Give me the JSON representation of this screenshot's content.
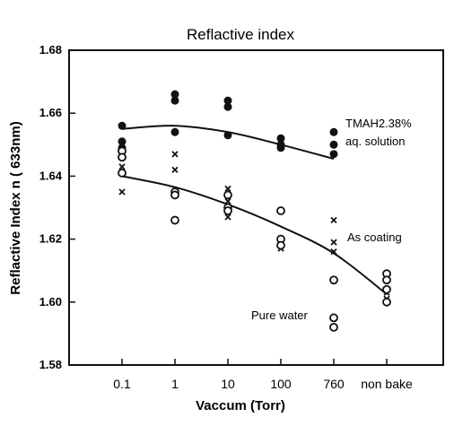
{
  "chart_data": {
    "type": "scatter",
    "title": "Reflactive index",
    "xlabel": "Vaccum  (Torr)",
    "ylabel": "Reflactive Index  n  ( 633nm)",
    "categories": [
      "0.1",
      "1",
      "10",
      "100",
      "760",
      "non bake"
    ],
    "ylim": [
      1.58,
      1.68
    ],
    "yticks": [
      "1.58",
      "1.60",
      "1.62",
      "1.64",
      "1.66",
      "1.68"
    ],
    "grid": false,
    "annotations": {
      "tmah_line1": "TMAH2.38%",
      "tmah_line2": "aq. solution",
      "as_coating": "As coating",
      "pure_water": "Pure water"
    },
    "series": [
      {
        "marker": "filled-circle",
        "points": [
          [
            "0.1",
            1.656
          ],
          [
            "0.1",
            1.651
          ],
          [
            "0.1",
            1.649
          ],
          [
            "1",
            1.666
          ],
          [
            "1",
            1.664
          ],
          [
            "1",
            1.654
          ],
          [
            "10",
            1.664
          ],
          [
            "10",
            1.662
          ],
          [
            "10",
            1.653
          ],
          [
            "100",
            1.652
          ],
          [
            "100",
            1.65
          ],
          [
            "100",
            1.649
          ],
          [
            "760",
            1.654
          ],
          [
            "760",
            1.65
          ],
          [
            "760",
            1.647
          ]
        ],
        "curve": [
          [
            "0.1",
            1.655
          ],
          [
            "1",
            1.656
          ],
          [
            "10",
            1.654
          ],
          [
            "100",
            1.65
          ],
          [
            "760",
            1.6455
          ]
        ]
      },
      {
        "marker": "cross",
        "points": [
          [
            "0.1",
            1.643
          ],
          [
            "0.1",
            1.635
          ],
          [
            "1",
            1.647
          ],
          [
            "1",
            1.642
          ],
          [
            "1",
            1.635
          ],
          [
            "10",
            1.636
          ],
          [
            "10",
            1.632
          ],
          [
            "10",
            1.627
          ],
          [
            "100",
            1.619
          ],
          [
            "100",
            1.617
          ],
          [
            "760",
            1.626
          ],
          [
            "760",
            1.619
          ],
          [
            "760",
            1.616
          ],
          [
            "non bake",
            1.603
          ],
          [
            "non bake",
            1.601
          ]
        ],
        "curve": [
          [
            "0.1",
            1.64
          ],
          [
            "1",
            1.6365
          ],
          [
            "10",
            1.631
          ],
          [
            "100",
            1.624
          ],
          [
            "760",
            1.6155
          ],
          [
            "non bake",
            1.6025
          ]
        ]
      },
      {
        "marker": "open-circle",
        "points": [
          [
            "0.1",
            1.648
          ],
          [
            "0.1",
            1.646
          ],
          [
            "0.1",
            1.641
          ],
          [
            "1",
            1.635
          ],
          [
            "1",
            1.634
          ],
          [
            "1",
            1.626
          ],
          [
            "10",
            1.634
          ],
          [
            "10",
            1.63
          ],
          [
            "10",
            1.629
          ],
          [
            "100",
            1.629
          ],
          [
            "100",
            1.62
          ],
          [
            "100",
            1.618
          ],
          [
            "760",
            1.607
          ],
          [
            "760",
            1.595
          ],
          [
            "760",
            1.592
          ],
          [
            "non bake",
            1.609
          ],
          [
            "non bake",
            1.607
          ],
          [
            "non bake",
            1.604
          ],
          [
            "non bake",
            1.6
          ]
        ]
      }
    ]
  }
}
